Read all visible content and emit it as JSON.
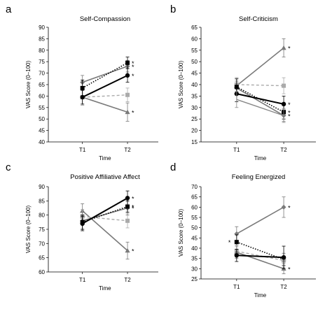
{
  "colors": {
    "light_gray": "#aaaaaa",
    "mid_gray": "#7a7a7a",
    "dark_gray": "#888888",
    "black": "#000000"
  },
  "chart_data": [
    {
      "panel": "a",
      "type": "line",
      "title": "Self-Compassion",
      "xlabel": "Time",
      "ylabel": "VAS Score (0–100)",
      "categories": [
        "T1",
        "T2"
      ],
      "ylim": [
        40,
        90
      ],
      "yticks": [
        40,
        45,
        50,
        55,
        60,
        65,
        70,
        75,
        80,
        85,
        90
      ],
      "series": [
        {
          "style": "gray-triangle-up",
          "values": [
            59.5,
            53
          ],
          "err": [
            3.5,
            4
          ],
          "stars": [
            false,
            true
          ]
        },
        {
          "style": "gray-diamond",
          "values": [
            66,
            73
          ],
          "err": [
            3,
            2.5
          ],
          "stars": [
            false,
            true
          ]
        },
        {
          "style": "lightgray-dashed-square",
          "values": [
            59.5,
            60.5
          ],
          "err": [
            3.5,
            3
          ],
          "stars": [
            false,
            false
          ]
        },
        {
          "style": "black-square-dotted",
          "values": [
            63.5,
            74.5
          ],
          "err": [
            3.5,
            2.5
          ],
          "stars": [
            false,
            true
          ]
        },
        {
          "style": "black-circle",
          "values": [
            59.5,
            69
          ],
          "err": [
            3,
            3
          ],
          "stars": [
            false,
            true
          ]
        }
      ]
    },
    {
      "panel": "b",
      "type": "line",
      "title": "Self-Criticism",
      "xlabel": "Time",
      "ylabel": "VAS Score (0–100)",
      "categories": [
        "T1",
        "T2"
      ],
      "ylim": [
        15,
        65
      ],
      "yticks": [
        15,
        20,
        25,
        30,
        35,
        40,
        45,
        50,
        55,
        60,
        65
      ],
      "series": [
        {
          "style": "gray-triangle-up",
          "values": [
            39.5,
            56
          ],
          "err": [
            3.5,
            4
          ],
          "stars": [
            false,
            true
          ]
        },
        {
          "style": "lightgray-dashed-square",
          "values": [
            40,
            39.5
          ],
          "err": [
            3,
            3.5
          ],
          "stars": [
            false,
            false
          ]
        },
        {
          "style": "gray-diamond",
          "values": [
            38.5,
            26.5
          ],
          "err": [
            3,
            2.5
          ],
          "stars": [
            false,
            true
          ]
        },
        {
          "style": "black-circle",
          "values": [
            36,
            31.5
          ],
          "err": [
            3.5,
            3.5
          ],
          "stars": [
            false,
            true
          ]
        },
        {
          "style": "black-square-dotted",
          "values": [
            39,
            28
          ],
          "err": [
            3.5,
            3
          ],
          "stars": [
            false,
            true
          ]
        },
        {
          "style": "gray-line",
          "values": [
            33.5,
            26.5
          ],
          "err": [
            3.5,
            3
          ],
          "stars": [
            false,
            false
          ]
        }
      ]
    },
    {
      "panel": "c",
      "type": "line",
      "title": "Positive Affiliative Affect",
      "xlabel": "Time",
      "ylabel": "VAS Score (0–100)",
      "categories": [
        "T1",
        "T2"
      ],
      "ylim": [
        60,
        90
      ],
      "yticks": [
        60,
        65,
        70,
        75,
        80,
        85,
        90
      ],
      "series": [
        {
          "style": "gray-triangle-up",
          "values": [
            81.5,
            67.5
          ],
          "err": [
            2.5,
            3
          ],
          "stars": [
            false,
            true
          ]
        },
        {
          "style": "lightgray-dashed-square",
          "values": [
            79.5,
            78
          ],
          "err": [
            2.5,
            2.5
          ],
          "stars": [
            false,
            false
          ]
        },
        {
          "style": "gray-diamond",
          "values": [
            78,
            82.5
          ],
          "err": [
            3,
            2.5
          ],
          "stars": [
            false,
            true
          ]
        },
        {
          "style": "black-square-dotted",
          "values": [
            77.5,
            83
          ],
          "err": [
            2.5,
            2
          ],
          "stars": [
            false,
            true
          ]
        },
        {
          "style": "black-circle",
          "values": [
            77,
            86
          ],
          "err": [
            2.5,
            2.5
          ],
          "stars": [
            false,
            true
          ]
        }
      ]
    },
    {
      "panel": "d",
      "type": "line",
      "title": "Feeling Energized",
      "xlabel": "Time",
      "ylabel": "VAS Score (0–100)",
      "categories": [
        "T1",
        "T2"
      ],
      "ylim": [
        25,
        70
      ],
      "yticks": [
        25,
        30,
        35,
        40,
        45,
        50,
        55,
        60,
        65,
        70
      ],
      "series": [
        {
          "style": "gray-diamond",
          "values": [
            47,
            60
          ],
          "err": [
            3.5,
            5
          ],
          "stars": [
            false,
            true
          ]
        },
        {
          "style": "black-square-dotted",
          "values": [
            43,
            34.5
          ],
          "err": [
            3.5,
            3
          ],
          "stars": [
            true,
            false
          ]
        },
        {
          "style": "lightgray-dashed-square",
          "values": [
            38.5,
            34
          ],
          "err": [
            3,
            3.5
          ],
          "stars": [
            false,
            false
          ]
        },
        {
          "style": "gray-triangle-up",
          "values": [
            38,
            30
          ],
          "err": [
            3,
            2.5
          ],
          "stars": [
            false,
            true
          ]
        },
        {
          "style": "black-circle",
          "values": [
            36.5,
            35.5
          ],
          "err": [
            3,
            5.5
          ],
          "stars": [
            false,
            false
          ]
        }
      ]
    }
  ]
}
